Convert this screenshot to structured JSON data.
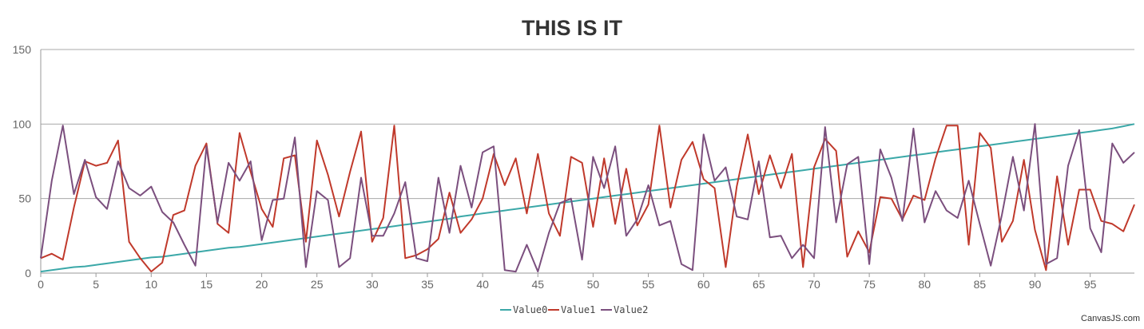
{
  "chart_data": {
    "type": "line",
    "title": "THIS IS IT",
    "xlabel": "",
    "ylabel": "",
    "xlim": [
      0,
      99
    ],
    "ylim": [
      0,
      150
    ],
    "x_ticks": [
      0,
      5,
      10,
      15,
      20,
      25,
      30,
      35,
      40,
      45,
      50,
      55,
      60,
      65,
      70,
      75,
      80,
      85,
      90,
      95
    ],
    "y_ticks": [
      0,
      50,
      100,
      150
    ],
    "grid": "horizontal",
    "legend_position": "bottom-center",
    "x": [
      0,
      1,
      2,
      3,
      4,
      5,
      6,
      7,
      8,
      9,
      10,
      11,
      12,
      13,
      14,
      15,
      16,
      17,
      18,
      19,
      20,
      21,
      22,
      23,
      24,
      25,
      26,
      27,
      28,
      29,
      30,
      31,
      32,
      33,
      34,
      35,
      36,
      37,
      38,
      39,
      40,
      41,
      42,
      43,
      44,
      45,
      46,
      47,
      48,
      49,
      50,
      51,
      52,
      53,
      54,
      55,
      56,
      57,
      58,
      59,
      60,
      61,
      62,
      63,
      64,
      65,
      66,
      67,
      68,
      69,
      70,
      71,
      72,
      73,
      74,
      75,
      76,
      77,
      78,
      79,
      80,
      81,
      82,
      83,
      84,
      85,
      86,
      87,
      88,
      89,
      90,
      91,
      92,
      93,
      94,
      95,
      96,
      97,
      98,
      99
    ],
    "series": [
      {
        "name": "Value0",
        "color": "#3ba8a8",
        "values": [
          1,
          2,
          3,
          4,
          4.5,
          5.5,
          6.5,
          7.5,
          8.5,
          9.5,
          10.5,
          11,
          12,
          13,
          14,
          15,
          16,
          17,
          17.5,
          18.5,
          19.5,
          20.5,
          21.5,
          22.5,
          23.5,
          24.5,
          25.5,
          26.5,
          27.5,
          28.5,
          29.5,
          30.5,
          31.5,
          32.5,
          33.5,
          34.5,
          35.5,
          36.5,
          38,
          39,
          40,
          41,
          42,
          43,
          44,
          45,
          46,
          47,
          48,
          49,
          50,
          51,
          52,
          53,
          54,
          55,
          56,
          57,
          58,
          59,
          60,
          61,
          62,
          63,
          64,
          65,
          66,
          67,
          68,
          69,
          70,
          71,
          72,
          73,
          74,
          75,
          76,
          77,
          78,
          79,
          80,
          81,
          82,
          83,
          84,
          85,
          86,
          87,
          88,
          89,
          90,
          91,
          92,
          93,
          94,
          95,
          96,
          97,
          98.5,
          100
        ]
      },
      {
        "name": "Value1",
        "color": "#c0392b",
        "values": [
          10,
          13,
          9,
          44,
          75,
          72,
          74,
          89,
          21,
          10,
          1,
          7,
          39,
          42,
          72,
          87,
          33,
          27,
          94,
          68,
          43,
          31,
          77,
          79,
          21,
          89,
          66,
          38,
          68,
          95,
          21,
          37,
          99,
          10,
          12,
          16,
          23,
          54,
          27,
          36,
          50,
          80,
          59,
          77,
          40,
          80,
          40,
          25,
          78,
          74,
          31,
          77,
          33,
          70,
          32,
          46,
          99,
          44,
          76,
          88,
          63,
          57,
          4,
          58,
          93,
          53,
          79,
          57,
          80,
          4,
          71,
          90,
          82,
          11,
          28,
          14,
          51,
          50,
          36,
          52,
          49,
          77,
          99,
          99,
          19,
          94,
          84,
          21,
          35,
          76,
          29,
          2,
          65,
          19,
          56,
          56,
          35,
          33,
          28,
          46
        ]
      },
      {
        "name": "Value2",
        "color": "#7b4f7e",
        "values": [
          10,
          62,
          99,
          53,
          76,
          51,
          43,
          75,
          57,
          52,
          58,
          41,
          34,
          19,
          5,
          85,
          34,
          74,
          62,
          75,
          22,
          49,
          50,
          91,
          4,
          55,
          49,
          4,
          10,
          64,
          25,
          25,
          40,
          61,
          10,
          8,
          64,
          27,
          72,
          44,
          81,
          85,
          2,
          1,
          19,
          1,
          27,
          47,
          50,
          9,
          78,
          57,
          85,
          25,
          36,
          59,
          32,
          35,
          6,
          2,
          93,
          62,
          71,
          38,
          36,
          75,
          24,
          25,
          10,
          19,
          10,
          98,
          34,
          73,
          78,
          6,
          83,
          64,
          35,
          97,
          34,
          55,
          42,
          37,
          62,
          33,
          5,
          39,
          78,
          42,
          100,
          6,
          10,
          72,
          96,
          30,
          14,
          87,
          74,
          81
        ]
      }
    ]
  },
  "credit": "CanvasJS.com"
}
